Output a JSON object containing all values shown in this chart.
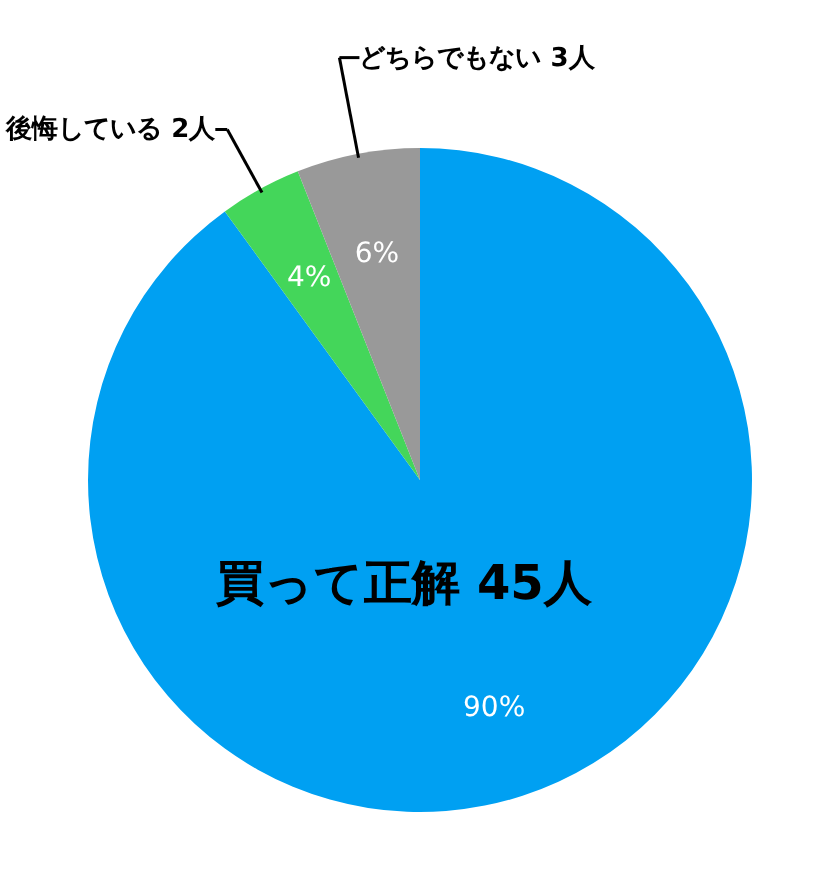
{
  "chart_data": {
    "type": "pie",
    "categories": [
      "買って正解 45人",
      "後悔している 2人",
      "どちらでもない 3人"
    ],
    "values": [
      90,
      4,
      6
    ],
    "colors": [
      "#00a0f2",
      "#44d65a",
      "#999999"
    ],
    "value_labels": [
      "90%",
      "4%",
      "6%"
    ]
  }
}
